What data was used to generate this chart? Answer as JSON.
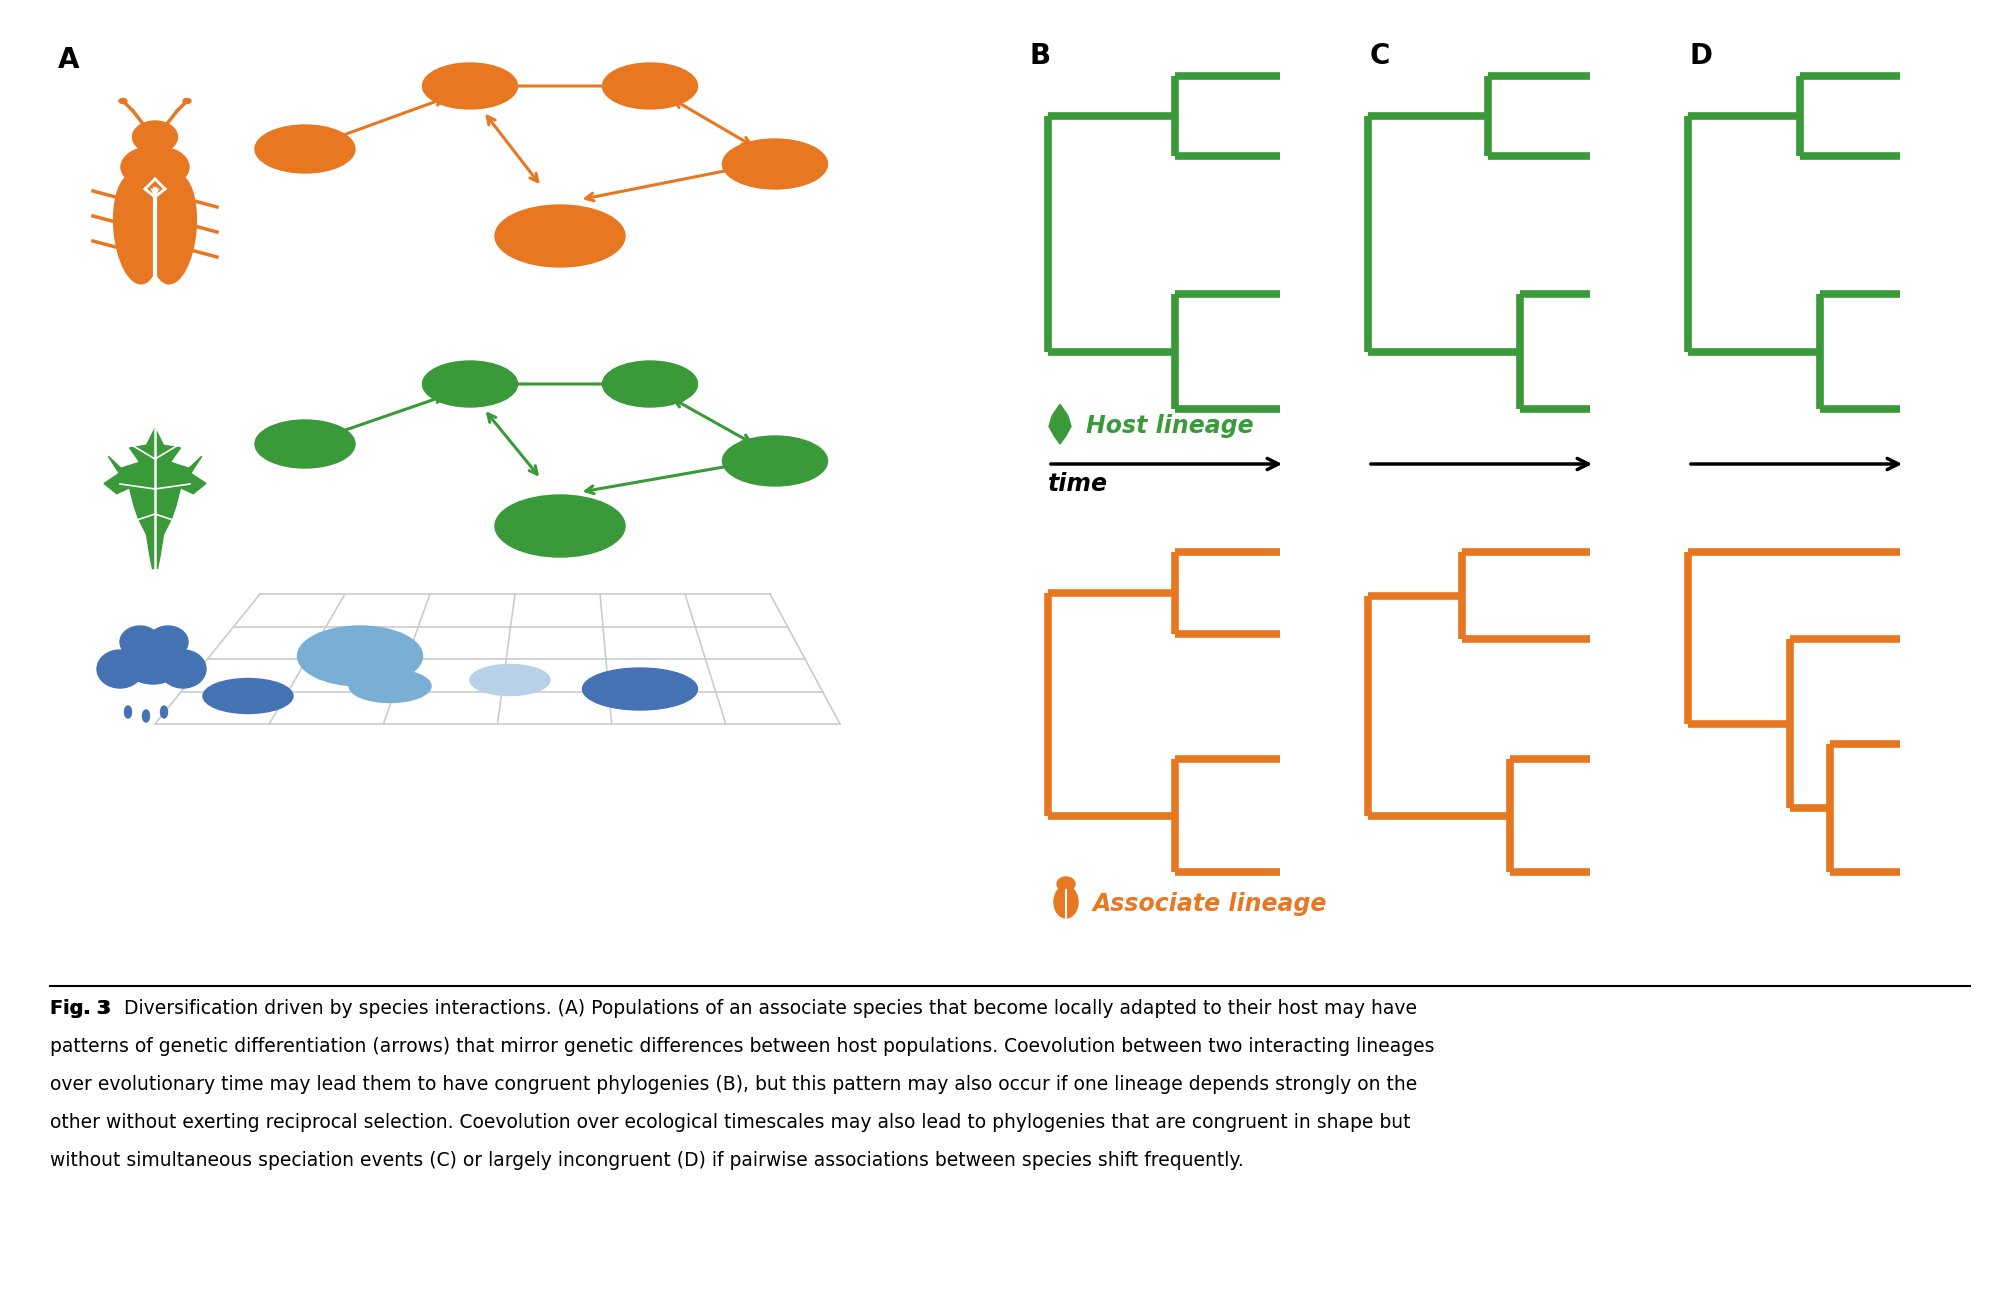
{
  "fig_width": 20.0,
  "fig_height": 13.04,
  "bg_color": "#ffffff",
  "orange_color": "#E87722",
  "green_color": "#3A9A3A",
  "blue_dark": "#4472B4",
  "blue_light": "#B8D0E8",
  "blue_mid": "#7AAFD4",
  "caption_bold": "Fig. 3",
  "caption_text": "Diversification driven by species interactions. (A) Populations of an associate species that become locally adapted to their host may have patterns of genetic differentiation (arrows) that mirror genetic differences between host populations. Coevolution between two interacting lineages over evolutionary time may lead them to have congruent phylogenies (B), but this pattern may also occur if one lineage depends strongly on the other without exerting reciprocal selection. Coevolution over ecological timescales may also lead to phylogenies that are congruent in shape but without simultaneous speciation events (C) or largely incongruent (D) if pairwise associations between species shift frequently.",
  "panel_label_fontsize": 20,
  "tree_lw": 5.5,
  "host_label": "Host lineage",
  "associate_label": "Associate lineage",
  "time_label": "time"
}
